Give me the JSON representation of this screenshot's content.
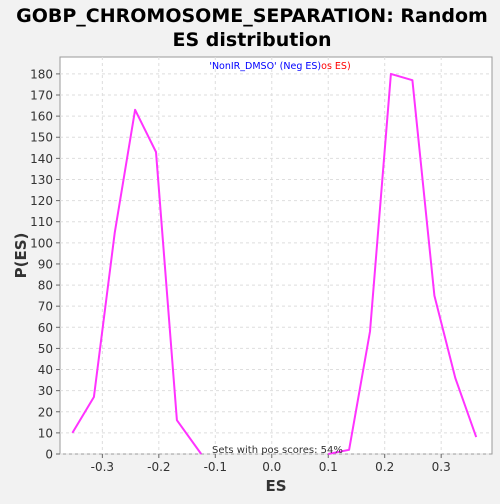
{
  "chart_data": {
    "type": "line",
    "title_line1": "GOBP_CHROMOSOME_SEPARATION: Random",
    "title_line2": "ES distribution",
    "xlabel": "ES",
    "ylabel": "P(ES)",
    "xlim": [
      -0.375,
      0.39
    ],
    "ylim": [
      0,
      188
    ],
    "xticks": [
      -0.3,
      -0.2,
      -0.1,
      0.0,
      0.1,
      0.2,
      0.3
    ],
    "xtick_labels": [
      "-0.3",
      "-0.2",
      "-0.1",
      "0.0",
      "0.1",
      "0.2",
      "0.3"
    ],
    "yticks": [
      0,
      10,
      20,
      30,
      40,
      50,
      60,
      70,
      80,
      90,
      100,
      110,
      120,
      130,
      140,
      150,
      160,
      170,
      180
    ],
    "grid": true,
    "legend": {
      "placement": "top-center",
      "neg_text": "'NonIR_DMSO' (Neg ES)",
      "pos_text": "os ES)",
      "neg_color": "#0000ff",
      "pos_color": "#ff0000"
    },
    "annotation": "Sets with pos scores: 54%",
    "line_color": "#ff33ff",
    "series": [
      {
        "x": [
          -0.353,
          -0.315,
          -0.278,
          -0.242,
          -0.205,
          -0.168,
          -0.125
        ],
        "y": [
          10,
          27,
          105,
          163,
          143,
          16,
          0
        ]
      },
      {
        "x": [
          0.1,
          0.137,
          0.174,
          0.211,
          0.249,
          0.288,
          0.325,
          0.362
        ],
        "y": [
          0,
          2,
          58,
          180,
          177,
          75,
          36,
          8
        ]
      }
    ]
  }
}
